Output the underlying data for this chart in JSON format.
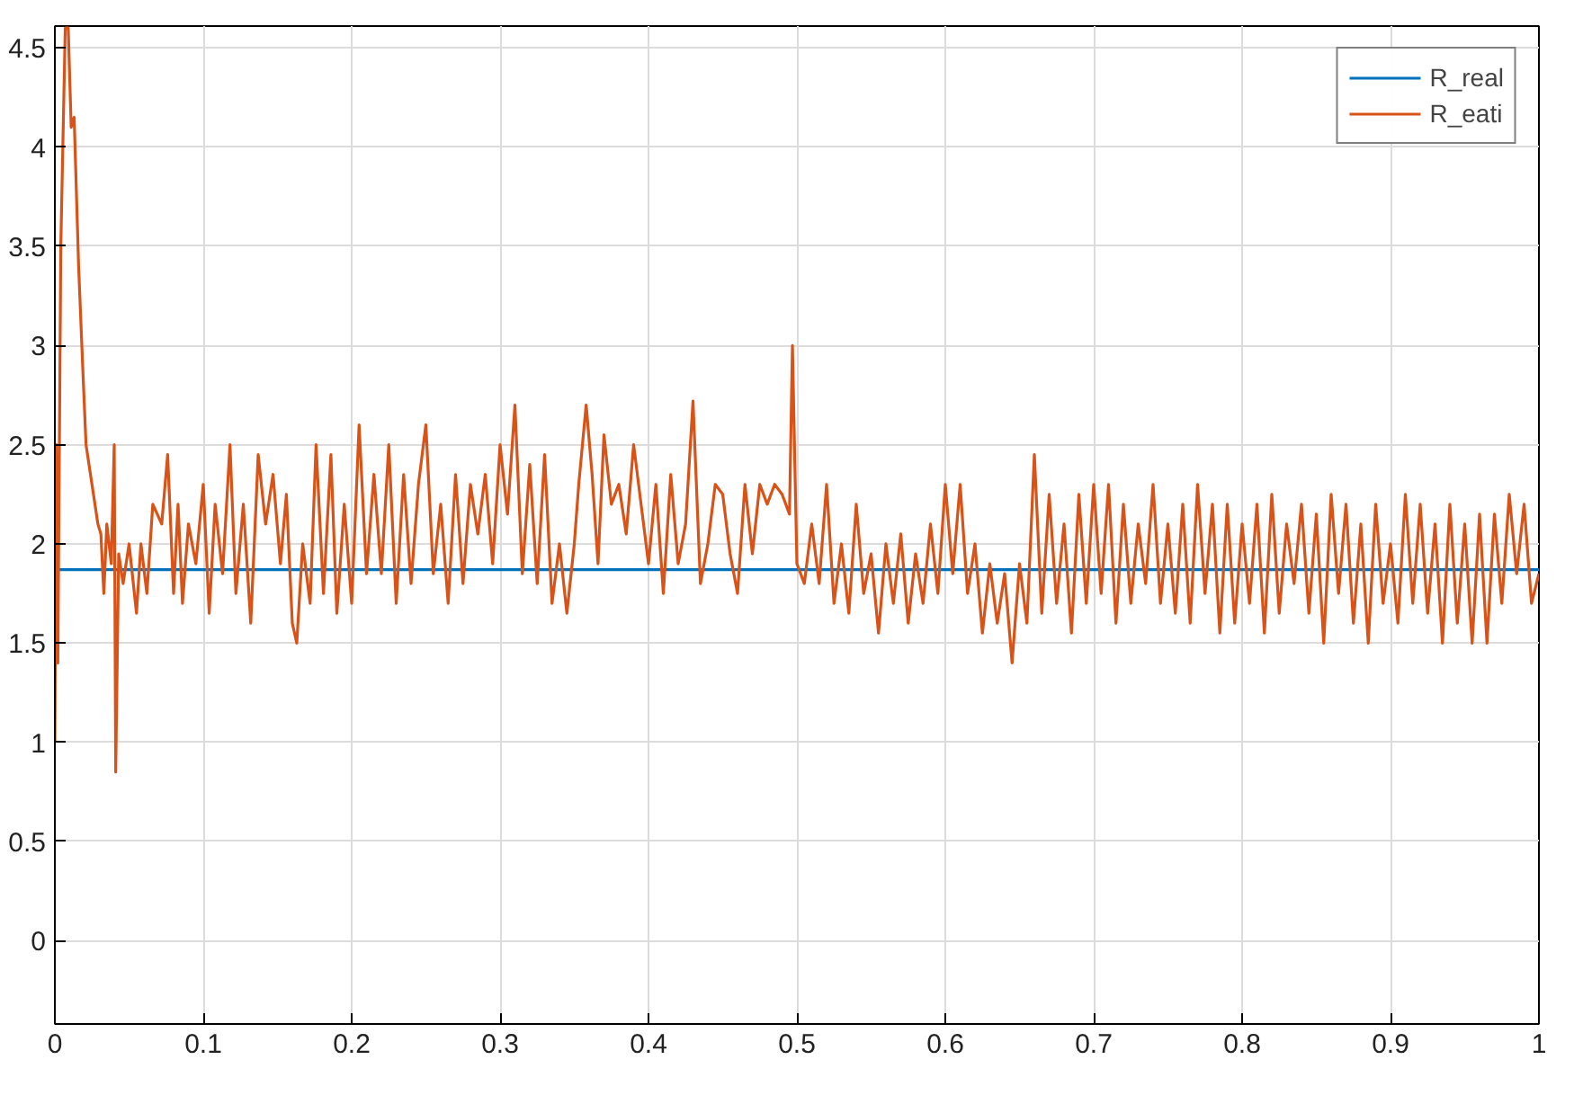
{
  "chart_data": {
    "type": "line",
    "xlim": [
      0,
      1
    ],
    "ylim": [
      -0.42,
      4.61
    ],
    "xticks": [
      0,
      0.1,
      0.2,
      0.3,
      0.4,
      0.5,
      0.6,
      0.7,
      0.8,
      0.9,
      1
    ],
    "yticks": [
      0,
      0.5,
      1,
      1.5,
      2,
      2.5,
      3,
      3.5,
      4,
      4.5
    ],
    "grid": true,
    "legend": "top right",
    "line_style": "solid",
    "series": [
      {
        "name": "R_real",
        "color": "#0072bd",
        "x": [
          0,
          1
        ],
        "values": [
          1.87,
          1.87
        ]
      },
      {
        "name": "R_eati",
        "color": "#d95319",
        "x": [
          0,
          0.001,
          0.002,
          0.004,
          0.007,
          0.009,
          0.011,
          0.013,
          0.016,
          0.019,
          0.021,
          0.025,
          0.029,
          0.031,
          0.033,
          0.035,
          0.038,
          0.04,
          0.041,
          0.043,
          0.046,
          0.05,
          0.055,
          0.058,
          0.062,
          0.066,
          0.072,
          0.076,
          0.08,
          0.083,
          0.086,
          0.09,
          0.095,
          0.1,
          0.104,
          0.108,
          0.113,
          0.118,
          0.122,
          0.127,
          0.132,
          0.137,
          0.142,
          0.147,
          0.152,
          0.156,
          0.16,
          0.163,
          0.167,
          0.172,
          0.176,
          0.181,
          0.186,
          0.19,
          0.195,
          0.2,
          0.205,
          0.21,
          0.215,
          0.22,
          0.225,
          0.23,
          0.235,
          0.24,
          0.245,
          0.25,
          0.255,
          0.26,
          0.265,
          0.27,
          0.275,
          0.28,
          0.285,
          0.29,
          0.295,
          0.3,
          0.305,
          0.31,
          0.315,
          0.32,
          0.325,
          0.33,
          0.335,
          0.34,
          0.345,
          0.35,
          0.353,
          0.358,
          0.362,
          0.366,
          0.37,
          0.375,
          0.38,
          0.385,
          0.39,
          0.395,
          0.4,
          0.405,
          0.41,
          0.415,
          0.42,
          0.425,
          0.43,
          0.435,
          0.44,
          0.445,
          0.45,
          0.455,
          0.46,
          0.465,
          0.47,
          0.475,
          0.48,
          0.485,
          0.49,
          0.495,
          0.497,
          0.5,
          0.505,
          0.51,
          0.515,
          0.52,
          0.525,
          0.53,
          0.535,
          0.54,
          0.545,
          0.55,
          0.555,
          0.56,
          0.565,
          0.57,
          0.575,
          0.58,
          0.585,
          0.59,
          0.595,
          0.6,
          0.605,
          0.61,
          0.615,
          0.62,
          0.625,
          0.63,
          0.635,
          0.64,
          0.645,
          0.65,
          0.655,
          0.66,
          0.665,
          0.67,
          0.675,
          0.68,
          0.685,
          0.69,
          0.695,
          0.7,
          0.705,
          0.71,
          0.715,
          0.72,
          0.725,
          0.73,
          0.735,
          0.74,
          0.745,
          0.75,
          0.755,
          0.76,
          0.765,
          0.77,
          0.775,
          0.78,
          0.785,
          0.79,
          0.795,
          0.8,
          0.805,
          0.81,
          0.815,
          0.82,
          0.825,
          0.83,
          0.835,
          0.84,
          0.845,
          0.85,
          0.855,
          0.86,
          0.865,
          0.87,
          0.875,
          0.88,
          0.885,
          0.89,
          0.895,
          0.9,
          0.905,
          0.91,
          0.915,
          0.92,
          0.925,
          0.93,
          0.935,
          0.94,
          0.945,
          0.95,
          0.955,
          0.96,
          0.965,
          0.97,
          0.975,
          0.98,
          0.985,
          0.99,
          0.995,
          1.0
        ],
        "values": [
          1.0,
          2.5,
          1.4,
          3.5,
          4.6,
          4.6,
          4.1,
          4.15,
          3.4,
          2.85,
          2.5,
          2.3,
          2.1,
          2.05,
          1.75,
          2.1,
          1.9,
          2.5,
          0.85,
          1.95,
          1.8,
          2.0,
          1.65,
          2.0,
          1.75,
          2.2,
          2.1,
          2.45,
          1.75,
          2.2,
          1.7,
          2.1,
          1.9,
          2.3,
          1.65,
          2.2,
          1.85,
          2.5,
          1.75,
          2.2,
          1.6,
          2.45,
          2.1,
          2.35,
          1.9,
          2.25,
          1.6,
          1.5,
          2.0,
          1.7,
          2.5,
          1.75,
          2.45,
          1.65,
          2.2,
          1.7,
          2.6,
          1.85,
          2.35,
          1.85,
          2.5,
          1.7,
          2.35,
          1.8,
          2.3,
          2.6,
          1.85,
          2.2,
          1.7,
          2.35,
          1.8,
          2.3,
          2.05,
          2.35,
          1.9,
          2.5,
          2.15,
          2.7,
          1.85,
          2.4,
          1.8,
          2.45,
          1.7,
          2.0,
          1.65,
          2.0,
          2.3,
          2.7,
          2.35,
          1.9,
          2.55,
          2.2,
          2.3,
          2.05,
          2.5,
          2.2,
          1.9,
          2.3,
          1.75,
          2.35,
          1.9,
          2.1,
          2.72,
          1.8,
          2.0,
          2.3,
          2.25,
          1.95,
          1.75,
          2.3,
          1.95,
          2.3,
          2.2,
          2.3,
          2.25,
          2.15,
          3.0,
          1.9,
          1.8,
          2.1,
          1.8,
          2.3,
          1.7,
          2.0,
          1.65,
          2.2,
          1.75,
          1.95,
          1.55,
          2.0,
          1.7,
          2.05,
          1.6,
          1.95,
          1.7,
          2.1,
          1.75,
          2.3,
          1.85,
          2.3,
          1.75,
          2.0,
          1.55,
          1.9,
          1.6,
          1.85,
          1.4,
          1.9,
          1.6,
          2.45,
          1.65,
          2.25,
          1.7,
          2.1,
          1.55,
          2.25,
          1.7,
          2.3,
          1.75,
          2.3,
          1.6,
          2.2,
          1.7,
          2.1,
          1.8,
          2.3,
          1.7,
          2.1,
          1.65,
          2.2,
          1.6,
          2.3,
          1.75,
          2.2,
          1.55,
          2.2,
          1.6,
          2.1,
          1.7,
          2.2,
          1.55,
          2.25,
          1.65,
          2.1,
          1.8,
          2.2,
          1.65,
          2.15,
          1.5,
          2.25,
          1.75,
          2.2,
          1.6,
          2.1,
          1.5,
          2.2,
          1.7,
          2.0,
          1.6,
          2.25,
          1.7,
          2.2,
          1.65,
          2.1,
          1.5,
          2.2,
          1.6,
          2.1,
          1.5,
          2.15,
          1.5,
          2.15,
          1.7,
          2.25,
          1.85,
          2.2,
          1.7,
          1.85
        ]
      }
    ]
  }
}
